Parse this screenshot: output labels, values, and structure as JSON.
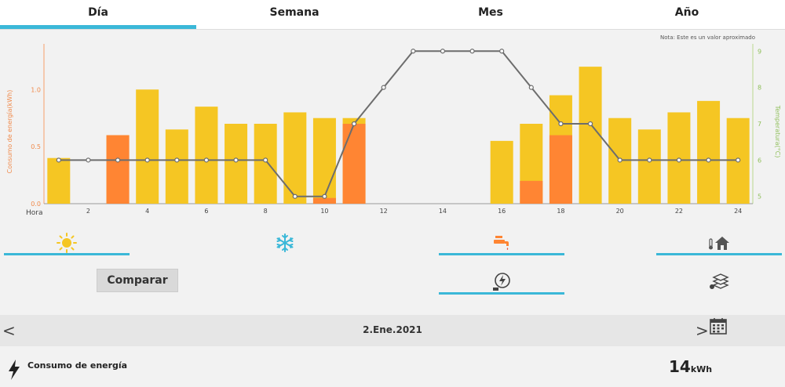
{
  "tabs": [
    {
      "label": "Día",
      "active": true
    },
    {
      "label": "Semana",
      "active": false
    },
    {
      "label": "Mes",
      "active": false
    },
    {
      "label": "Año",
      "active": false
    }
  ],
  "note": "Nota: Este es un valor aproximado",
  "chart_data": {
    "type": "bar",
    "xlabel": "Hora",
    "ylabel": "Consumo de energía(kWh)",
    "y2label": "Temperatura(°C)",
    "x": [
      1,
      2,
      3,
      4,
      5,
      6,
      7,
      8,
      9,
      10,
      11,
      12,
      13,
      14,
      15,
      16,
      17,
      18,
      19,
      20,
      21,
      22,
      23,
      24
    ],
    "x_ticks": [
      2,
      4,
      6,
      8,
      10,
      12,
      14,
      16,
      18,
      20,
      22,
      24
    ],
    "ylim": [
      0,
      1.4
    ],
    "y_ticks": [
      0.0,
      0.5,
      1.0
    ],
    "y_tick_labels": [
      "0.0",
      "0.5",
      "1.0"
    ],
    "y2lim": [
      4.8,
      9.2
    ],
    "y2_ticks": [
      5,
      6,
      7,
      8,
      9
    ],
    "series": [
      {
        "type": "bar",
        "color": "#f5c623",
        "values": [
          0.4,
          0,
          0.6,
          1.0,
          0.65,
          0.85,
          0.7,
          0.7,
          0.8,
          0.75,
          0.75,
          0,
          0,
          0,
          0,
          0.55,
          0.7,
          0.95,
          1.2,
          0.75,
          0.65,
          0.8,
          0.9,
          0.75
        ]
      },
      {
        "type": "bar",
        "color": "#ff8533",
        "values": [
          0,
          0,
          0.6,
          0,
          0,
          0,
          0,
          0,
          0,
          0.05,
          0.7,
          0,
          0,
          0,
          0,
          0,
          0.2,
          0.6,
          0,
          0,
          0,
          0,
          0,
          0
        ]
      },
      {
        "type": "line",
        "axis": "right",
        "color": "#6d6d6d",
        "values": [
          6,
          6,
          6,
          6,
          6,
          6,
          6,
          6,
          5,
          5,
          7,
          8,
          9,
          9,
          9,
          9,
          8,
          7,
          7,
          6,
          6,
          6,
          6,
          6
        ]
      }
    ],
    "grid": false,
    "legend": "none"
  },
  "modes": {
    "sun": {
      "icon": "sun-icon",
      "color": "#f5c623"
    },
    "snow": {
      "icon": "snowflake-icon",
      "color": "#3bb8d8"
    },
    "faucet": {
      "icon": "faucet-icon",
      "color": "#ff8533"
    },
    "house": {
      "icon": "house-temperature-icon",
      "color": "#555"
    },
    "power": {
      "icon": "power-meter-icon",
      "color": "#444"
    },
    "layers": {
      "icon": "layers-icon",
      "color": "#444"
    }
  },
  "compare_label": "Comparar",
  "date": {
    "prev": "<",
    "next": ">",
    "label": "2.Ene.2021"
  },
  "footer": {
    "label": "Consumo de energía",
    "value": "14",
    "unit": "kWh"
  }
}
